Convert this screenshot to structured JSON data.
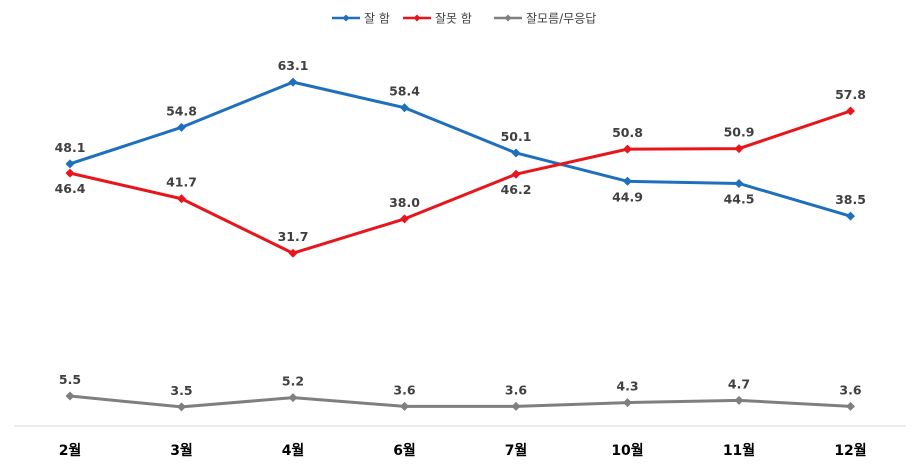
{
  "chart_data": {
    "type": "line",
    "categories": [
      "2월",
      "3월",
      "4월",
      "6월",
      "7월",
      "10월",
      "11월",
      "12월"
    ],
    "series": [
      {
        "name": "잘 함",
        "color": "#1F6FBF",
        "marker": "diamond",
        "values": [
          48.1,
          54.8,
          63.1,
          58.4,
          50.1,
          44.9,
          44.5,
          38.5
        ]
      },
      {
        "name": "잘못 함",
        "color": "#E8151B",
        "marker": "diamond",
        "values": [
          46.4,
          41.7,
          31.7,
          38.0,
          46.2,
          50.8,
          50.9,
          57.8
        ]
      },
      {
        "name": "잘모름/무응답",
        "color": "#7F7F7F",
        "marker": "diamond",
        "values": [
          5.5,
          3.5,
          5.2,
          3.6,
          3.6,
          4.3,
          4.7,
          3.6
        ]
      }
    ],
    "label_text": [
      [
        "48.1",
        "54.8",
        "63.1",
        "58.4",
        "50.1",
        "44.9",
        "44.5",
        "38.5"
      ],
      [
        "46.4",
        "41.7",
        "31.7",
        "38.0",
        "46.2",
        "50.8",
        "50.9",
        "57.8"
      ],
      [
        "5.5",
        "3.5",
        "5.2",
        "3.6",
        "3.6",
        "4.3",
        "4.7",
        "3.6"
      ]
    ],
    "label_position": [
      [
        "above",
        "above",
        "above",
        "above",
        "above",
        "below",
        "below",
        "above"
      ],
      [
        "below",
        "above",
        "above",
        "above",
        "below",
        "above",
        "above",
        "above"
      ],
      [
        "above",
        "above",
        "above",
        "above",
        "above",
        "above",
        "above",
        "above"
      ]
    ],
    "legend_position": "top-center",
    "grid": false,
    "y_axis_visible": false,
    "ylim": [
      0,
      70
    ]
  }
}
